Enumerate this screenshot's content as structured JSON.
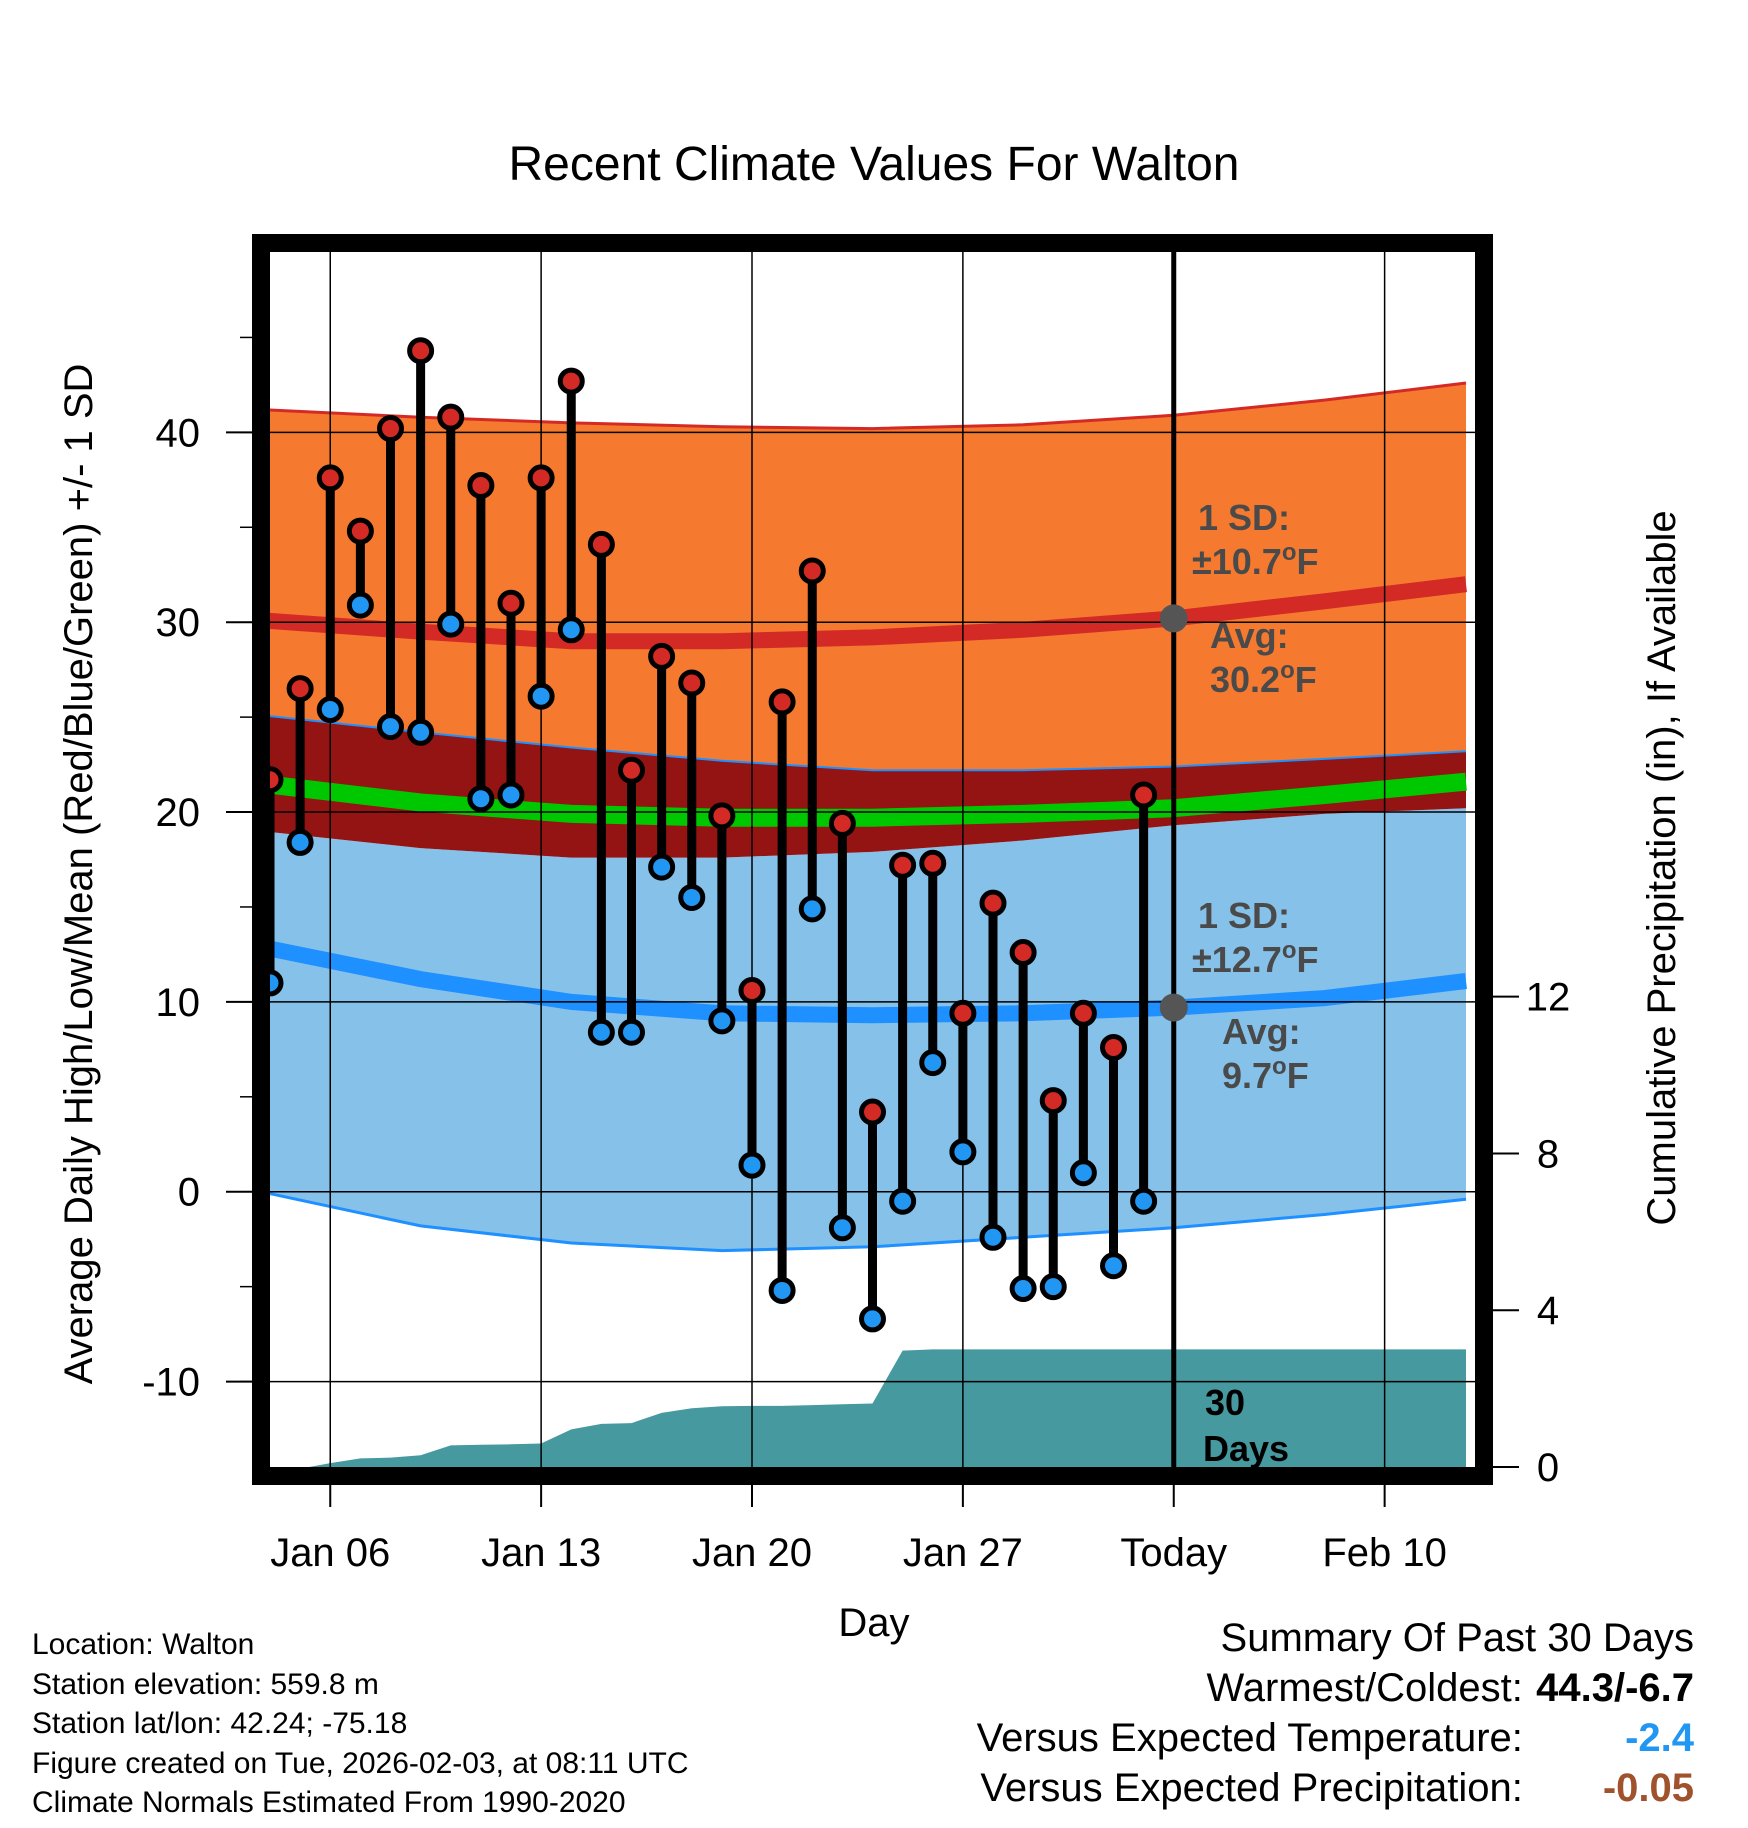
{
  "chart_data": {
    "type": "line",
    "title": "Recent Climate Values For Walton",
    "xlabel": "Day",
    "ylabel": "Average Daily High/Low/Mean (Red/Blue/Green) +/- 1 SD",
    "y2label": "Cumulative Precipitation (in), If Available",
    "ylim": [
      -14.5,
      49.5
    ],
    "y2lim": [
      0,
      31
    ],
    "xlim": [
      -30.0,
      10.0
    ],
    "yticks": [
      "-10",
      "0",
      "10",
      "20",
      "30",
      "40"
    ],
    "y2ticks": [
      "0",
      "4",
      "8",
      "12"
    ],
    "xticks": [
      {
        "day": -28,
        "label": "Jan 06"
      },
      {
        "day": -21,
        "label": "Jan 13"
      },
      {
        "day": -14,
        "label": "Jan 20"
      },
      {
        "day": -7,
        "label": "Jan 27"
      },
      {
        "day": 0,
        "label": "Today"
      },
      {
        "day": 7,
        "label": "Feb 10"
      }
    ],
    "normals": {
      "days": [
        -30.3,
        -25,
        -20,
        -15,
        -10,
        -5,
        0,
        5,
        9.7
      ],
      "high_mean": [
        30.1,
        29.5,
        29.0,
        29.0,
        29.2,
        29.6,
        30.2,
        31.1,
        32.0
      ],
      "high_upper": [
        41.2,
        40.8,
        40.5,
        40.3,
        40.2,
        40.4,
        40.9,
        41.7,
        42.6
      ],
      "high_lower": [
        25.1,
        24.2,
        23.4,
        22.7,
        22.2,
        22.2,
        22.4,
        22.8,
        23.2
      ],
      "low_mean": [
        12.9,
        11.2,
        10.0,
        9.4,
        9.3,
        9.4,
        9.7,
        10.2,
        11.1
      ],
      "low_upper": [
        19.0,
        18.1,
        17.6,
        17.6,
        17.9,
        18.5,
        19.3,
        19.9,
        20.2
      ],
      "low_lower": [
        0.0,
        -1.8,
        -2.7,
        -3.1,
        -2.9,
        -2.4,
        -1.9,
        -1.2,
        -0.4
      ],
      "mean": [
        21.5,
        20.5,
        19.9,
        19.7,
        19.7,
        19.9,
        20.2,
        20.9,
        21.6
      ]
    },
    "series": [
      {
        "name": "High",
        "color": "#d7191c",
        "values": [
          21.7,
          26.5,
          37.6,
          34.8,
          40.2,
          44.3,
          40.8,
          37.2,
          31.0,
          37.6,
          42.7,
          34.1,
          22.2,
          28.2,
          26.8,
          19.8,
          10.6,
          25.8,
          32.7,
          19.4,
          4.2,
          17.2,
          17.3,
          9.4,
          15.2,
          12.6,
          4.8,
          9.4,
          7.6,
          20.9
        ]
      },
      {
        "name": "Low",
        "color": "#1e90ff",
        "values": [
          11.0,
          18.4,
          25.4,
          30.9,
          24.5,
          24.2,
          29.9,
          20.7,
          20.9,
          26.1,
          29.6,
          8.4,
          8.4,
          17.1,
          15.5,
          9.0,
          1.4,
          -5.2,
          14.9,
          -1.9,
          -6.7,
          -0.5,
          6.8,
          2.1,
          -2.4,
          -5.1,
          -5.0,
          1.0,
          -3.9,
          -0.5
        ]
      }
    ],
    "obs_days": [
      -30,
      -29,
      -28,
      -27,
      -26,
      -25,
      -24,
      -23,
      -22,
      -21,
      -20,
      -19,
      -18,
      -17,
      -16,
      -15,
      -14,
      -13,
      -12,
      -11,
      -10,
      -9,
      -8,
      -7,
      -6,
      -5,
      -4,
      -3,
      -2,
      -1
    ],
    "precip": {
      "days": [
        -30.3,
        -28.7,
        -28.0,
        -27.0,
        -26.0,
        -25.0,
        -24.0,
        -23.0,
        -22.0,
        -21.0,
        -20.0,
        -19.0,
        -18.0,
        -17.0,
        -16.0,
        -15.0,
        -14.0,
        -13.0,
        -12.0,
        -11.0,
        -10.0,
        -9.0,
        -8.0,
        -7.0,
        -6.0,
        -5.0,
        -4.0,
        -3.0,
        -2.0,
        -1.0,
        0.0,
        9.7
      ],
      "values": [
        0.0,
        0.0,
        0.1,
        0.22,
        0.24,
        0.3,
        0.55,
        0.57,
        0.58,
        0.6,
        0.96,
        1.1,
        1.12,
        1.38,
        1.5,
        1.55,
        1.56,
        1.56,
        1.58,
        1.6,
        1.62,
        2.97,
        3.0,
        3.0,
        3.0,
        3.0,
        3.0,
        3.0,
        3.0,
        3.0,
        3.0,
        3.0
      ]
    },
    "annotations": {
      "high_sd": "1 SD:",
      "high_sd_val": "±10.7",
      "high_avg": "Avg:",
      "high_avg_val": "30.2",
      "low_sd": "1 SD:",
      "low_sd_val": "±12.7",
      "low_avg": "Avg:",
      "low_avg_val": "9.7",
      "unit_deg": "o",
      "unit_f": "F",
      "days_num": "30",
      "days_word": "Days"
    },
    "colors": {
      "high_band": "#f57a30",
      "high_line": "#d42a26",
      "low_band": "#85c1e8",
      "low_line": "#1e90ff",
      "overlap": "#941313",
      "mean_line": "#00c800",
      "precip": "#46999f",
      "dot_high": "#d42a26",
      "dot_low": "#2196f3"
    }
  },
  "info": {
    "location": "Location: Walton",
    "elevation": "Station elevation: 559.8 m",
    "latlon": "Station lat/lon: 42.24; -75.18",
    "created": "Figure created on Tue, 2026-02-03, at 08:11 UTC",
    "normals": "Climate Normals Estimated From 1990-2020"
  },
  "summary": {
    "title": "Summary Of Past 30 Days",
    "warm_cold_label": "Warmest/Coldest:",
    "warm_cold_value": "44.3/-6.7",
    "temp_label": "Versus Expected Temperature:",
    "temp_value": "-2.4",
    "temp_color": "#2196f3",
    "precip_label": "Versus Expected Precipitation:",
    "precip_value": "-0.05",
    "precip_color": "#a0522d"
  }
}
